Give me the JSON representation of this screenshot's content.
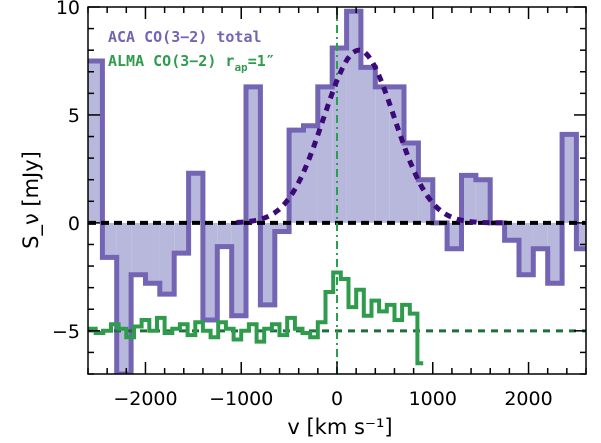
{
  "chart_data": {
    "type": "line",
    "xlabel": "v [km s⁻¹]",
    "ylabel": "S_ν [mJy]",
    "xlim": [
      -2600,
      2600
    ],
    "ylim": [
      -7,
      10
    ],
    "x_ticks": [
      -2000,
      -1000,
      0,
      1000,
      2000
    ],
    "x_tick_labels": [
      "−2000",
      "−1000",
      "0",
      "1000",
      "2000"
    ],
    "y_ticks": [
      -5,
      0,
      5,
      10
    ],
    "y_tick_labels": [
      "−5",
      "0",
      "5",
      "10"
    ],
    "legend_position": "top-left",
    "grid": false,
    "colors": {
      "aca_fill": "#b8b8dc",
      "aca_line": "#7464b4",
      "gauss": "#3c0a78",
      "alma": "#2e9c4c",
      "zero": "#000000",
      "baseline": "#1e6e3c",
      "vline": "#28a050"
    },
    "series": [
      {
        "name": "ACA CO(3−2) total",
        "style": "step-filled",
        "edges": [
          -2600,
          -2450,
          -2300,
          -2150,
          -2000,
          -1850,
          -1700,
          -1550,
          -1400,
          -1250,
          -1100,
          -950,
          -800,
          -650,
          -500,
          -350,
          -200,
          -50,
          100,
          250,
          400,
          550,
          700,
          850,
          1000,
          1150,
          1300,
          1450,
          1600,
          1750,
          1900,
          2050,
          2200,
          2350,
          2500,
          2600
        ],
        "values": [
          7.5,
          -1.6,
          -7.2,
          -2.4,
          -2.8,
          -3.3,
          -1.4,
          2.3,
          -4.5,
          -1.1,
          -4.3,
          6.3,
          -3.8,
          -0.4,
          4.3,
          4.5,
          6.3,
          8.1,
          9.8,
          7.2,
          6.3,
          6.3,
          3.7,
          2.0,
          0.0,
          -1.2,
          2.2,
          2.0,
          0.0,
          -0.8,
          -2.4,
          -1.2,
          -2.8,
          4.1,
          -1.2
        ]
      },
      {
        "name": "ALMA CO(3−2) r_ap=1″",
        "style": "step",
        "edges": [
          -2600,
          -2520,
          -2440,
          -2360,
          -2280,
          -2200,
          -2120,
          -2040,
          -1960,
          -1880,
          -1800,
          -1720,
          -1640,
          -1560,
          -1480,
          -1400,
          -1320,
          -1240,
          -1160,
          -1080,
          -1000,
          -920,
          -840,
          -760,
          -680,
          -600,
          -520,
          -440,
          -360,
          -280,
          -200,
          -120,
          -40,
          40,
          120,
          200,
          280,
          360,
          440,
          520,
          600,
          680,
          760,
          840,
          900
        ],
        "values": [
          -4.9,
          -5.1,
          -5.0,
          -4.7,
          -4.9,
          -5.3,
          -4.8,
          -4.5,
          -5.0,
          -4.4,
          -5.1,
          -4.9,
          -4.7,
          -5.2,
          -4.6,
          -5.0,
          -5.3,
          -4.6,
          -4.9,
          -5.4,
          -5.0,
          -4.7,
          -5.5,
          -4.9,
          -4.7,
          -5.2,
          -4.4,
          -4.9,
          -5.1,
          -5.3,
          -4.6,
          -3.2,
          -2.3,
          -2.6,
          -3.9,
          -3.1,
          -4.3,
          -3.6,
          -4.1,
          -3.8,
          -4.5,
          -3.8,
          -4.2,
          -6.5
        ]
      },
      {
        "name": "Gaussian fit",
        "style": "dashed",
        "amplitude": 8.0,
        "center": 230,
        "sigma": 370,
        "x_range": [
          -1050,
          1750
        ]
      }
    ],
    "reference_lines": [
      {
        "kind": "horizontal",
        "y": 0,
        "style": "dashed"
      },
      {
        "kind": "horizontal",
        "y": -5,
        "style": "dashed"
      },
      {
        "kind": "vertical",
        "x": 0,
        "style": "dash-dot"
      }
    ],
    "legend": [
      {
        "text": "ACA CO(3−2) total"
      },
      {
        "text": "ALMA CO(3−2) r",
        "sub": "ap",
        "tail": "=1″"
      }
    ]
  }
}
